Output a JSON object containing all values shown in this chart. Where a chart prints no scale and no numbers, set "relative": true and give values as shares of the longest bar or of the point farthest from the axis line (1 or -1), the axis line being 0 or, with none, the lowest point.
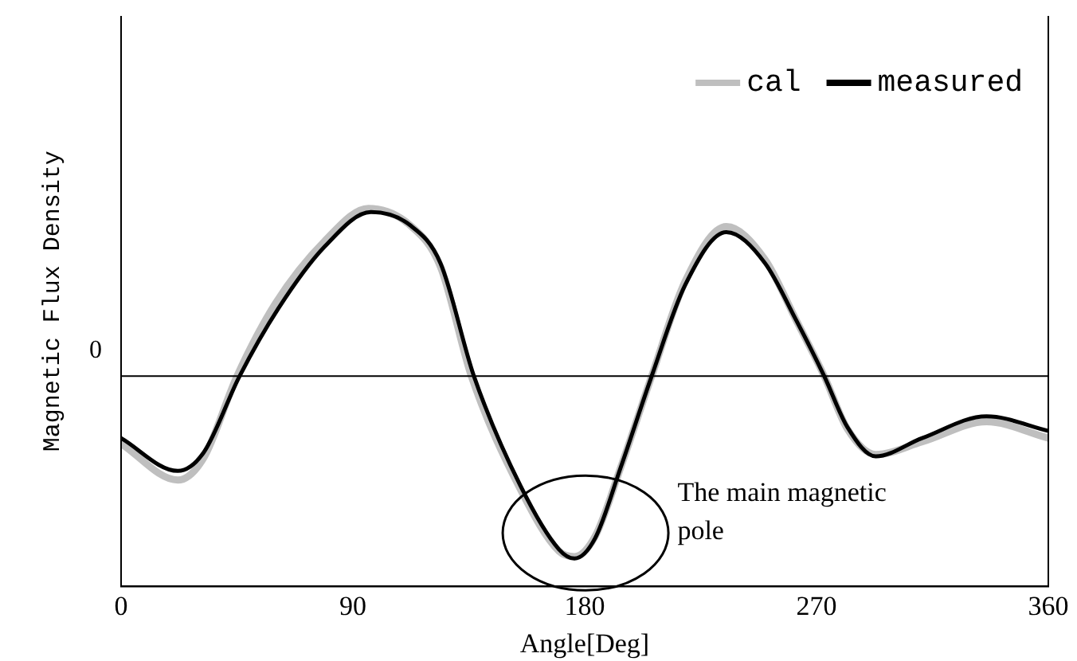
{
  "chart_data": {
    "type": "line",
    "relative": true,
    "xlabel": "Angle[Deg]",
    "ylabel": "Magnetic Flux Density",
    "xlim": [
      0,
      360
    ],
    "xticks": [
      0,
      90,
      180,
      270,
      360
    ],
    "grid": false,
    "legend": "top right",
    "marker": "none",
    "line_style": "solid",
    "ref_lines": [
      {
        "axis": "y",
        "value": 0,
        "label": "0",
        "color": "#000000"
      }
    ],
    "annotations": [
      "The main magnetic pole"
    ],
    "series": [
      {
        "name": "cal",
        "color": "#bfbfbf",
        "x": [
          0,
          22,
          32,
          45,
          60,
          79,
          96,
          112,
          124,
          136,
          155,
          170,
          176,
          184,
          194,
          206,
          219,
          235,
          250,
          262,
          273,
          282,
          293,
          311,
          336,
          360
        ],
        "values": [
          -0.37,
          -0.57,
          -0.45,
          0,
          0.4,
          0.74,
          0.92,
          0.83,
          0.6,
          0,
          -0.62,
          -0.96,
          -0.99,
          -0.88,
          -0.5,
          0,
          0.52,
          0.82,
          0.64,
          0.31,
          0,
          -0.29,
          -0.43,
          -0.36,
          -0.25,
          -0.34
        ]
      },
      {
        "name": "measured",
        "color": "#000000",
        "x": [
          0,
          22,
          32,
          46,
          61,
          79,
          97,
          112,
          124,
          137,
          155,
          170,
          176,
          184,
          194,
          206,
          219,
          235,
          250,
          262,
          273,
          282,
          293,
          311,
          336,
          360
        ],
        "values": [
          -0.34,
          -0.52,
          -0.42,
          0,
          0.37,
          0.71,
          0.9,
          0.83,
          0.62,
          0,
          -0.6,
          -0.95,
          -1,
          -0.89,
          -0.5,
          0,
          0.5,
          0.79,
          0.62,
          0.31,
          0,
          -0.28,
          -0.44,
          -0.34,
          -0.22,
          -0.3
        ]
      }
    ]
  }
}
